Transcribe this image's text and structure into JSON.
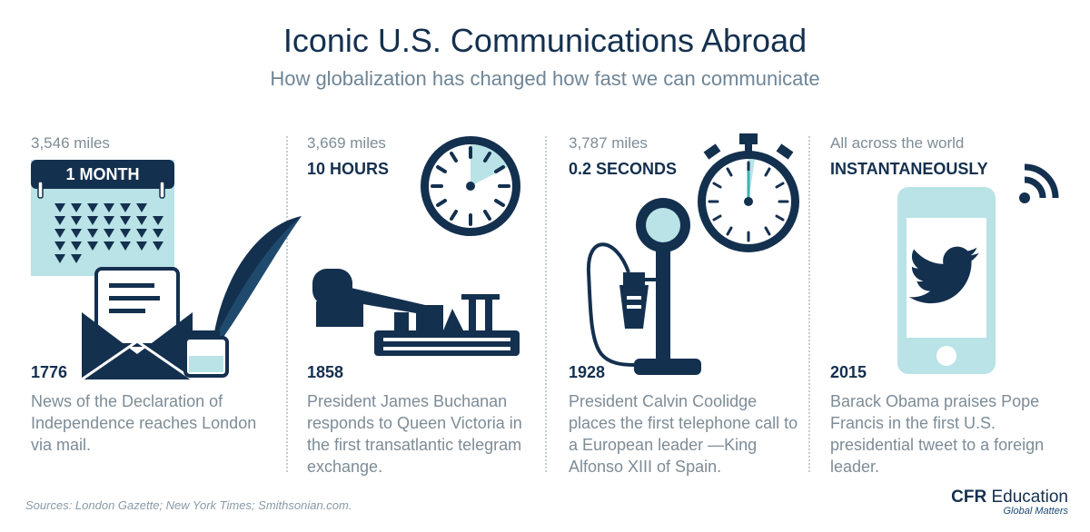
{
  "header": {
    "title": "Iconic U.S. Communications Abroad",
    "subtitle": "How globalization has changed how fast we can communicate"
  },
  "panels": [
    {
      "distance": "3,546 miles",
      "speed": "1 MONTH",
      "year": "1776",
      "description": "News of the Declaration of Independence reaches London via mail.",
      "icons": [
        "calendar-icon",
        "envelope-icon",
        "quill-icon",
        "inkwell-icon"
      ]
    },
    {
      "distance": "3,669 miles",
      "speed": "10 HOURS",
      "year": "1858",
      "description": "President James Buchanan responds to Queen Victoria in the first transatlantic telegram exchange.",
      "icons": [
        "clock-icon",
        "telegraph-key-icon"
      ]
    },
    {
      "distance": "3,787 miles",
      "speed": "0.2 SECONDS",
      "year": "1928",
      "description": "President Calvin Coolidge places the first telephone call to a European leader —King Alfonso XIII of Spain.",
      "icons": [
        "stopwatch-icon",
        "candlestick-telephone-icon"
      ]
    },
    {
      "distance": "All across the world",
      "speed": "INSTANTANEOUSLY",
      "year": "2015",
      "description": "Barack Obama praises Pope Francis in the first U.S. presidential tweet to a foreign leader.",
      "icons": [
        "wifi-signal-icon",
        "smartphone-icon",
        "twitter-bird-icon"
      ]
    }
  ],
  "footer": {
    "sources": "Sources: London Gazette; New York Times; Smithsonian.com.",
    "brand_bold": "CFR",
    "brand_rest": " Education",
    "tagline": "Global Matters"
  },
  "colors": {
    "navy": "#14304f",
    "light_teal": "#b9e3e6",
    "gray_text": "#7d8c97"
  }
}
